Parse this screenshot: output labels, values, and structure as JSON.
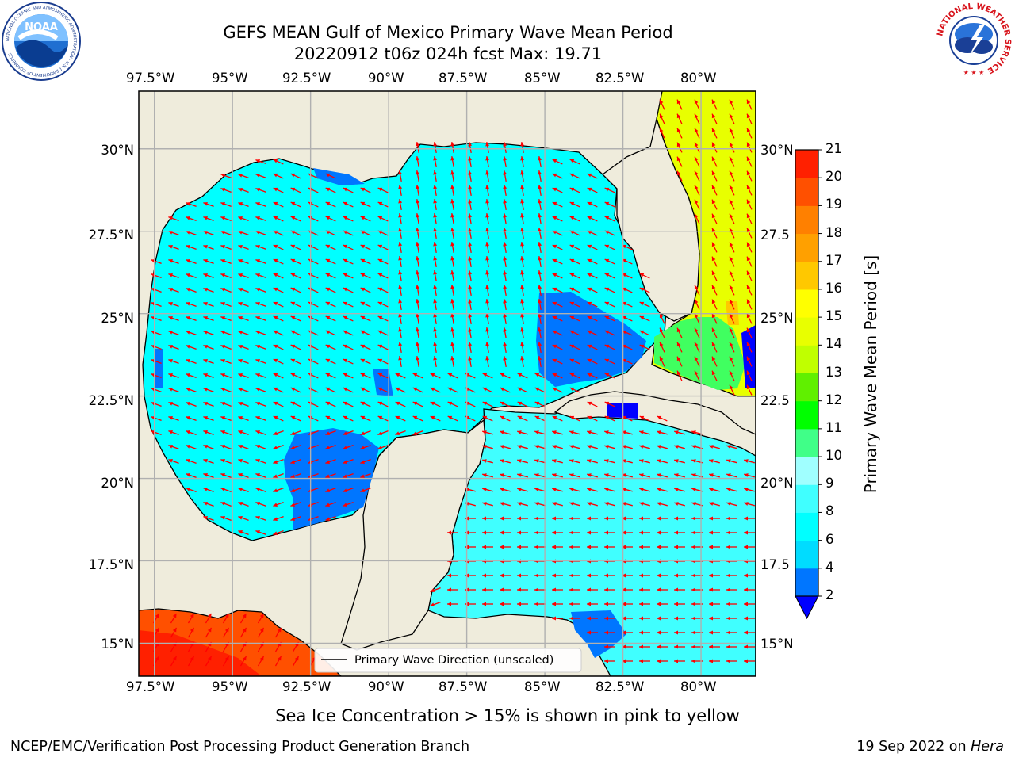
{
  "title": {
    "line1": "GEFS MEAN Gulf of Mexico Primary Wave Mean Period",
    "line2": "20220912 t06z 024h fcst   Max: 19.71"
  },
  "logos": {
    "left": "NOAA",
    "left_ring_text": "NATIONAL OCEANIC AND ATMOSPHERIC ADMINISTRATION · U.S. DEPARTMENT OF COMMERCE",
    "right_ring_text": "NATIONAL WEATHER SERVICE"
  },
  "map": {
    "lon_labels": [
      "97.5°W",
      "95°W",
      "92.5°W",
      "90°W",
      "87.5°W",
      "85°W",
      "82.5°W",
      "80°W"
    ],
    "lat_labels": [
      "30°N",
      "27.5°N",
      "25°N",
      "22.5°N",
      "20°N",
      "17.5°N",
      "15°N"
    ],
    "lat_labels_right": [
      "30°N",
      "27.5",
      "25°N",
      "22.5",
      "20°N",
      "17.5",
      "15°N"
    ],
    "extent": {
      "lon": [
        -98,
        -78.25
      ],
      "lat": [
        14,
        31.75
      ]
    },
    "legend_label": "Primary Wave Direction (unscaled)",
    "colors": {
      "land": "#efecdc",
      "arrow": "#ff0000",
      "grid": "#b0b0b0"
    }
  },
  "colorbar": {
    "label": "Primary Wave Mean Period [s]",
    "ticks": [
      "2",
      "4",
      "6",
      "8",
      "9",
      "10",
      "11",
      "12",
      "13",
      "14",
      "15",
      "16",
      "17",
      "18",
      "19",
      "20",
      "21"
    ],
    "colors": [
      "#0076ff",
      "#00dcff",
      "#00ffff",
      "#40ffff",
      "#a0ffff",
      "#40ff88",
      "#00ff00",
      "#60f000",
      "#c0ff00",
      "#e8ff00",
      "#ffff00",
      "#ffc800",
      "#ffa000",
      "#ff8000",
      "#ff5000",
      "#ff2000"
    ],
    "extend_color": "#0000ff"
  },
  "subtitle": "Sea Ice Concentration > 15% is shown in pink to yellow",
  "footer": {
    "left": "NCEP/EMC/Verification Post Processing Product Generation Branch",
    "right_date": "19 Sep 2022 on ",
    "right_host": "Hera"
  }
}
